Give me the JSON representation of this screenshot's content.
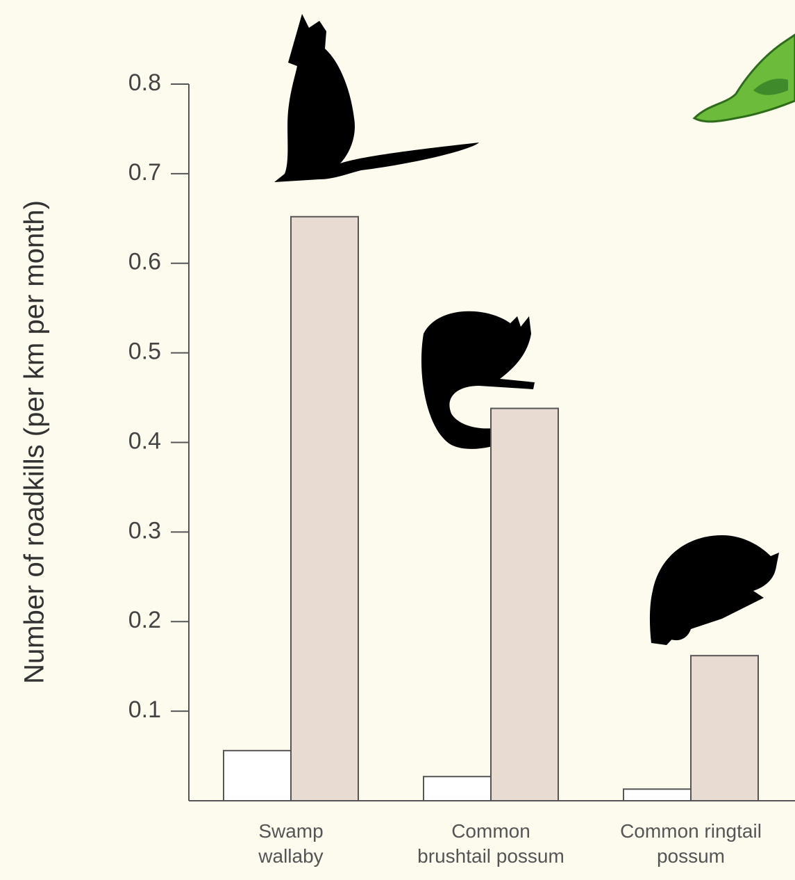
{
  "chart_data": {
    "type": "bar",
    "y_label": "Number of roadkills (per km per month)",
    "categories": [
      "Swamp\nwallaby",
      "Common\nbrushtail possum",
      "Common ringtail\npossum"
    ],
    "series": [
      {
        "color": "#ffffff",
        "values": [
          0.056,
          0.027,
          0.013
        ]
      },
      {
        "color": "#e8dcd2",
        "values": [
          0.652,
          0.438,
          0.162
        ]
      }
    ],
    "ylim": [
      0,
      0.8
    ],
    "yticks": [
      0.1,
      0.2,
      0.3,
      0.4,
      0.5,
      0.6,
      0.7,
      0.8
    ],
    "grid": false
  }
}
